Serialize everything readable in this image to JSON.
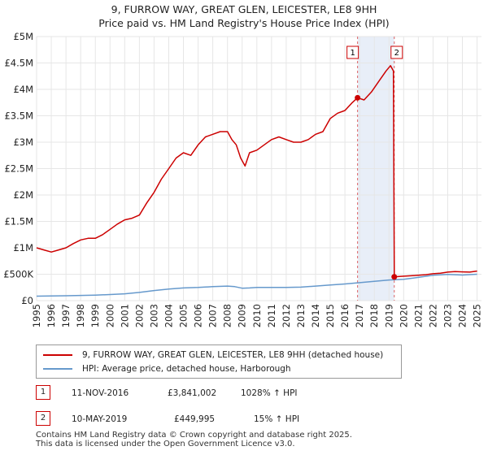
{
  "title_line1": "9, FURROW WAY, GREAT GLEN, LEICESTER, LE8 9HH",
  "title_line2": "Price paid vs. HM Land Registry's House Price Index (HPI)",
  "colors": {
    "property": "#cc0000",
    "hpi": "#6699cc",
    "shade": "#e8eef8",
    "grid": "#e6e6e6"
  },
  "legend": {
    "property_label": "9, FURROW WAY, GREAT GLEN, LEICESTER, LE8 9HH (detached house)",
    "hpi_label": "HPI: Average price, detached house, Harborough"
  },
  "sales": [
    {
      "num": "1",
      "date": "11-NOV-2016",
      "price": "£3,841,002",
      "hpi": "1028% ↑ HPI"
    },
    {
      "num": "2",
      "date": "10-MAY-2019",
      "price": "£449,995",
      "hpi": "15% ↑ HPI"
    }
  ],
  "footer_line1": "Contains HM Land Registry data © Crown copyright and database right 2025.",
  "footer_line2": "This data is licensed under the Open Government Licence v3.0.",
  "chart_data": {
    "type": "line",
    "title": "Price paid vs. HM Land Registry's House Price Index (HPI)",
    "ylim": [
      0,
      5000000
    ],
    "xlim": [
      1995,
      2025.3
    ],
    "y_ticks": [
      0,
      500000,
      1000000,
      1500000,
      2000000,
      2500000,
      3000000,
      3500000,
      4000000,
      4500000,
      5000000
    ],
    "y_tick_labels": [
      "£0",
      "£500K",
      "£1M",
      "£1.5M",
      "£2M",
      "£2.5M",
      "£3M",
      "£3.5M",
      "£4M",
      "£4.5M",
      "£5M"
    ],
    "x_ticks": [
      1995,
      1996,
      1997,
      1998,
      1999,
      2000,
      2001,
      2002,
      2003,
      2004,
      2005,
      2006,
      2007,
      2008,
      2009,
      2010,
      2011,
      2012,
      2013,
      2014,
      2015,
      2016,
      2017,
      2018,
      2019,
      2020,
      2021,
      2022,
      2023,
      2024,
      2025
    ],
    "shaded_range": [
      2016.86,
      2019.36
    ],
    "sale_markers": [
      {
        "label": "1",
        "x": 2016.86,
        "y": 3841002
      },
      {
        "label": "2",
        "x": 2019.36,
        "y": 449995
      }
    ],
    "series": [
      {
        "name": "9, FURROW WAY, GREAT GLEN, LEICESTER, LE8 9HH (detached house)",
        "x": [
          1995.0,
          1995.5,
          1996.0,
          1996.5,
          1997.0,
          1997.5,
          1998.0,
          1998.5,
          1999.0,
          1999.5,
          2000.0,
          2000.5,
          2001.0,
          2001.5,
          2002.0,
          2002.5,
          2003.0,
          2003.5,
          2004.0,
          2004.5,
          2005.0,
          2005.5,
          2006.0,
          2006.5,
          2007.0,
          2007.5,
          2008.0,
          2008.3,
          2008.6,
          2008.9,
          2009.2,
          2009.5,
          2010.0,
          2010.5,
          2011.0,
          2011.5,
          2012.0,
          2012.5,
          2013.0,
          2013.5,
          2014.0,
          2014.5,
          2015.0,
          2015.5,
          2016.0,
          2016.5,
          2016.86,
          2017.3,
          2017.8,
          2018.3,
          2018.8,
          2019.1,
          2019.3,
          2019.36,
          2019.8,
          2020.5,
          2021.0,
          2021.5,
          2022.0,
          2022.5,
          2023.0,
          2023.5,
          2024.0,
          2024.5,
          2025.0
        ],
        "values": [
          1000000,
          960000,
          920000,
          960000,
          1000000,
          1080000,
          1150000,
          1180000,
          1180000,
          1250000,
          1350000,
          1450000,
          1530000,
          1560000,
          1620000,
          1850000,
          2050000,
          2300000,
          2500000,
          2700000,
          2800000,
          2750000,
          2950000,
          3100000,
          3150000,
          3200000,
          3200000,
          3050000,
          2950000,
          2700000,
          2550000,
          2800000,
          2850000,
          2950000,
          3050000,
          3100000,
          3050000,
          3000000,
          3000000,
          3050000,
          3150000,
          3200000,
          3450000,
          3550000,
          3600000,
          3750000,
          3841002,
          3800000,
          3950000,
          4150000,
          4350000,
          4450000,
          4350000,
          449995,
          460000,
          470000,
          480000,
          490000,
          510000,
          520000,
          540000,
          550000,
          545000,
          540000,
          560000
        ]
      },
      {
        "name": "HPI: Average price, detached house, Harborough",
        "x": [
          1995,
          1996,
          1997,
          1998,
          1999,
          2000,
          2001,
          2002,
          2003,
          2004,
          2005,
          2006,
          2007,
          2008,
          2008.5,
          2009,
          2009.5,
          2010,
          2011,
          2012,
          2013,
          2014,
          2015,
          2016,
          2017,
          2018,
          2019,
          2020,
          2021,
          2022,
          2023,
          2024,
          2025
        ],
        "values": [
          85000,
          88000,
          92000,
          98000,
          105000,
          115000,
          130000,
          155000,
          190000,
          220000,
          240000,
          250000,
          265000,
          275000,
          265000,
          235000,
          240000,
          250000,
          250000,
          250000,
          255000,
          275000,
          295000,
          315000,
          340000,
          365000,
          390000,
          405000,
          440000,
          480000,
          495000,
          485000,
          500000
        ]
      }
    ]
  }
}
